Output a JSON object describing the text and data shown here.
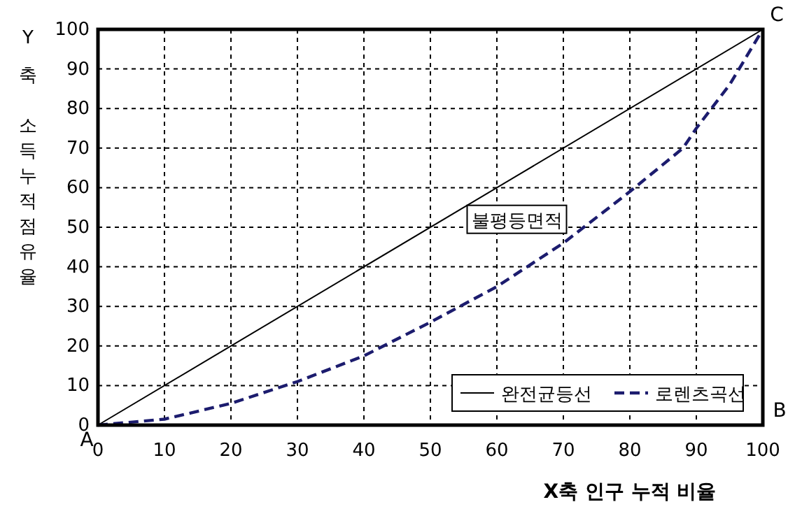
{
  "chart_data": {
    "type": "line",
    "xlabel": "X축 인구 누적 비율",
    "ylabel": "Y 축  소득누적점유율",
    "xlim": [
      0,
      100
    ],
    "ylim": [
      0,
      100
    ],
    "xticks": [
      0,
      10,
      20,
      30,
      40,
      50,
      60,
      70,
      80,
      90,
      100
    ],
    "yticks": [
      0,
      10,
      20,
      30,
      40,
      50,
      60,
      70,
      80,
      90,
      100
    ],
    "grid": true,
    "legend": "bottom right",
    "marker": "none",
    "series": [
      {
        "name": "완전균등선",
        "color": "#000000",
        "line_style": "solid",
        "x": [
          0,
          100
        ],
        "values": [
          0,
          100
        ]
      },
      {
        "name": "로렌츠곡선",
        "color": "#1c1c6e",
        "line_style": "dashed",
        "x": [
          0,
          10,
          20,
          30,
          40,
          50,
          60,
          70,
          80,
          88,
          90,
          95,
          100
        ],
        "values": [
          0,
          1.5,
          5.5,
          11,
          17.5,
          26,
          35,
          46,
          59,
          70,
          75,
          86,
          100
        ]
      }
    ],
    "annotations": [
      {
        "text": "A",
        "x": 0,
        "y": 0
      },
      {
        "text": "C",
        "x": 100,
        "y": 100
      },
      "불평등면적",
      "B"
    ]
  }
}
